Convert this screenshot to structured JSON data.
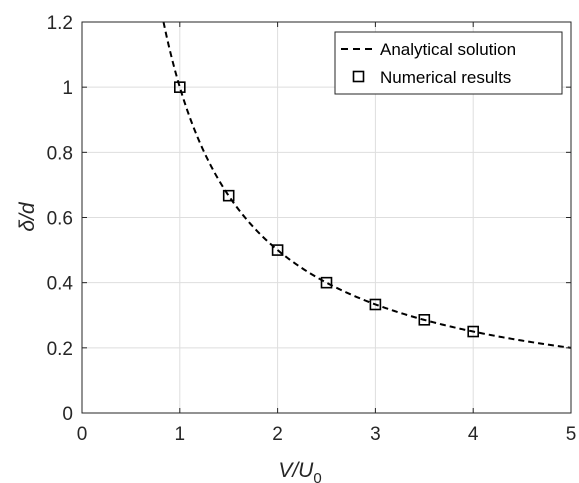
{
  "chart_data": {
    "type": "line",
    "xlabel": {
      "base": "V/U",
      "subscript": "0"
    },
    "ylabel": "δ/d",
    "xlim": [
      0,
      5
    ],
    "ylim": [
      0,
      1.2
    ],
    "x_ticks": [
      0,
      1,
      2,
      3,
      4,
      5
    ],
    "y_ticks": [
      0,
      0.2,
      0.4,
      0.6,
      0.8,
      1,
      1.2
    ],
    "x_tick_labels": [
      "0",
      "1",
      "2",
      "3",
      "4",
      "5"
    ],
    "y_tick_labels": [
      "0",
      "0.2",
      "0.4",
      "0.6",
      "0.8",
      "1",
      "1.2"
    ],
    "grid": true,
    "legend_position": "top-right",
    "series": [
      {
        "name": "Analytical solution",
        "style": "dashed-line",
        "color": "#000000",
        "function": "1/x",
        "x_range": [
          0.8333,
          5
        ]
      },
      {
        "name": "Numerical results",
        "style": "square-markers",
        "color": "#000000",
        "x": [
          1,
          1.5,
          2,
          2.5,
          3,
          3.5,
          4
        ],
        "y": [
          1.0,
          0.667,
          0.5,
          0.4,
          0.333,
          0.286,
          0.25
        ]
      }
    ]
  }
}
